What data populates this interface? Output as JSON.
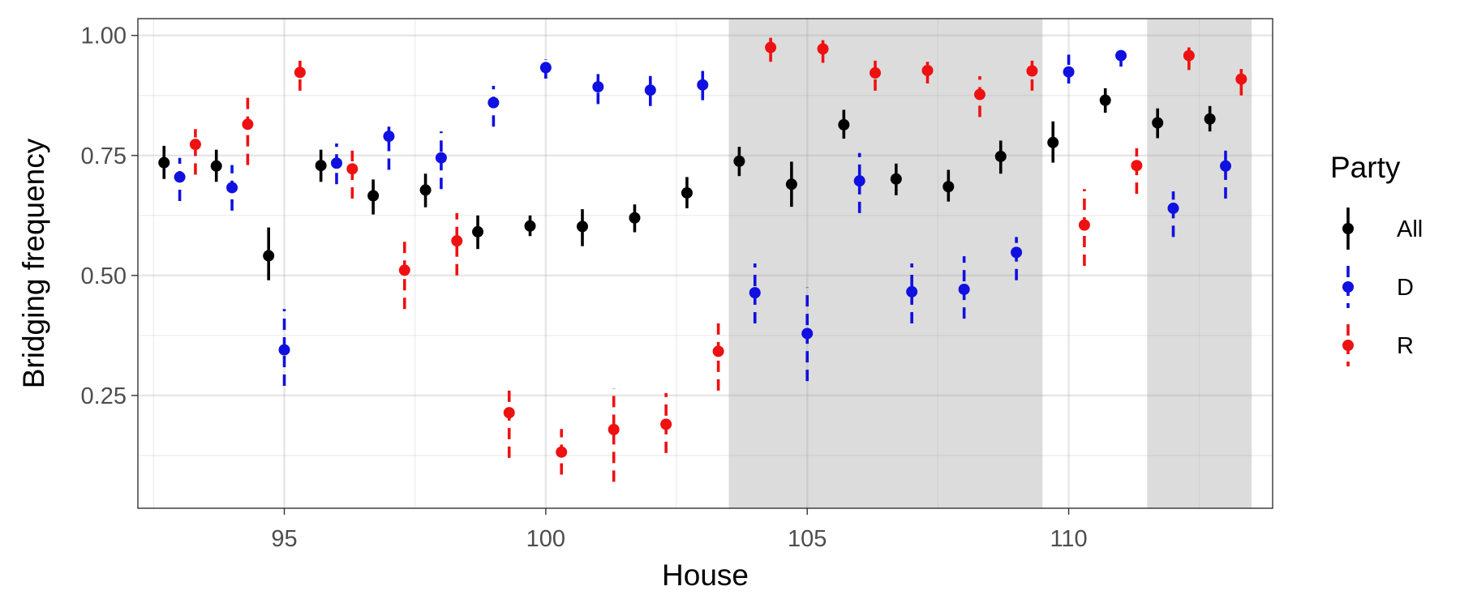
{
  "chart_data": {
    "type": "scatter",
    "title": "",
    "xlabel": "House",
    "ylabel": "Bridging frequency",
    "xlim": [
      92.2,
      113.9
    ],
    "ylim": [
      0.015,
      1.035
    ],
    "x_ticks": [
      95,
      100,
      105,
      110
    ],
    "x_tick_labels": [
      "95",
      "100",
      "105",
      "110"
    ],
    "y_ticks": [
      0.25,
      0.5,
      0.75,
      1.0
    ],
    "y_tick_labels": [
      "0.25",
      "0.50",
      "0.75",
      "1.00"
    ],
    "grid": true,
    "legend": {
      "title": "Party",
      "position": "right"
    },
    "shaded_ranges": [
      [
        103.5,
        109.5
      ],
      [
        111.5,
        113.5
      ]
    ],
    "series": [
      {
        "name": "All",
        "color": "#000000",
        "linestyle": "solid",
        "x": [
          93,
          94,
          95,
          96,
          97,
          98,
          99,
          100,
          101,
          102,
          103,
          104,
          105,
          106,
          107,
          108,
          109,
          110,
          111,
          112,
          113
        ],
        "y": [
          0.735,
          0.728,
          0.541,
          0.729,
          0.666,
          0.678,
          0.591,
          0.603,
          0.602,
          0.62,
          0.672,
          0.738,
          0.69,
          0.814,
          0.701,
          0.685,
          0.748,
          0.777,
          0.865,
          0.818,
          0.826
        ],
        "ylow": [
          0.701,
          0.695,
          0.49,
          0.695,
          0.627,
          0.642,
          0.555,
          0.582,
          0.561,
          0.59,
          0.64,
          0.707,
          0.643,
          0.785,
          0.667,
          0.654,
          0.712,
          0.735,
          0.839,
          0.786,
          0.8
        ],
        "yhigh": [
          0.77,
          0.762,
          0.6,
          0.762,
          0.7,
          0.712,
          0.625,
          0.625,
          0.638,
          0.648,
          0.705,
          0.768,
          0.737,
          0.845,
          0.733,
          0.72,
          0.781,
          0.821,
          0.89,
          0.848,
          0.853
        ]
      },
      {
        "name": "D",
        "color": "#1010e0",
        "linestyle": "dashed",
        "x": [
          93,
          94,
          95,
          96,
          97,
          98,
          99,
          100,
          101,
          102,
          103,
          104,
          105,
          106,
          107,
          108,
          109,
          110,
          111,
          112,
          113
        ],
        "y": [
          0.705,
          0.683,
          0.345,
          0.734,
          0.79,
          0.745,
          0.86,
          0.933,
          0.893,
          0.886,
          0.897,
          0.464,
          0.379,
          0.697,
          0.466,
          0.471,
          0.548,
          0.924,
          0.958,
          0.64,
          0.728
        ],
        "ylow": [
          0.655,
          0.635,
          0.27,
          0.69,
          0.72,
          0.68,
          0.81,
          0.91,
          0.857,
          0.853,
          0.865,
          0.4,
          0.28,
          0.63,
          0.4,
          0.41,
          0.49,
          0.9,
          0.935,
          0.58,
          0.66
        ],
        "yhigh": [
          0.745,
          0.73,
          0.43,
          0.775,
          0.81,
          0.8,
          0.895,
          0.95,
          0.93,
          0.918,
          0.926,
          0.525,
          0.475,
          0.755,
          0.525,
          0.54,
          0.58,
          0.96,
          0.97,
          0.675,
          0.76
        ]
      },
      {
        "name": "R",
        "color": "#ee1111",
        "linestyle": "dashed",
        "x": [
          93,
          94,
          95,
          96,
          97,
          98,
          99,
          100,
          101,
          102,
          103,
          104,
          105,
          106,
          107,
          108,
          109,
          110,
          111,
          112,
          113
        ],
        "y": [
          0.773,
          0.815,
          0.923,
          0.722,
          0.511,
          0.572,
          0.214,
          0.132,
          0.179,
          0.19,
          0.342,
          0.975,
          0.972,
          0.922,
          0.927,
          0.877,
          0.926,
          0.605,
          0.729,
          0.958,
          0.909
        ],
        "ylow": [
          0.71,
          0.73,
          0.885,
          0.66,
          0.43,
          0.5,
          0.12,
          0.085,
          0.07,
          0.13,
          0.26,
          0.945,
          0.943,
          0.885,
          0.9,
          0.83,
          0.885,
          0.52,
          0.67,
          0.928,
          0.875
        ],
        "yhigh": [
          0.805,
          0.885,
          0.955,
          0.76,
          0.585,
          0.63,
          0.275,
          0.18,
          0.265,
          0.255,
          0.415,
          0.995,
          0.99,
          0.955,
          0.945,
          0.915,
          0.955,
          0.68,
          0.765,
          0.975,
          0.93
        ]
      }
    ]
  }
}
